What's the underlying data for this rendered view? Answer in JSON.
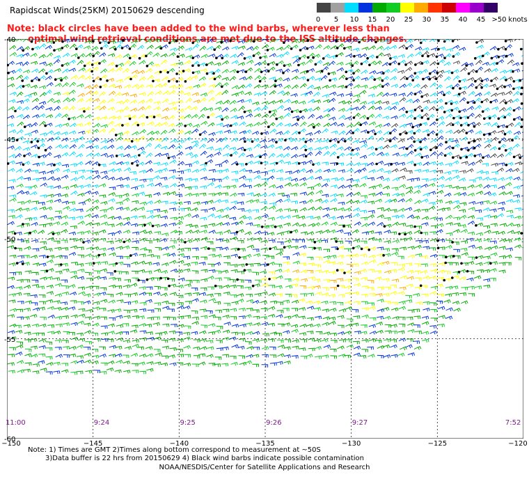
{
  "title": "Rapidscat Winds(25KM) 20150629 descending",
  "note": {
    "line1": "Note: black circles have been added to the wind barbs, wherever less than",
    "line2": "optimal wind retrieval conditions are met due to the ISS altitude changes."
  },
  "legend": {
    "unit": "knots",
    "labels": [
      "0",
      "5",
      "10",
      "15",
      "20",
      "25",
      "30",
      "35",
      "40",
      "45",
      ">50"
    ],
    "colors": [
      "#444444",
      "#a0a0a0",
      "#00ddff",
      "#0033dd",
      "#00aa00",
      "#11cc22",
      "#ffff00",
      "#ffaa00",
      "#ff3300",
      "#cc0000",
      "#ff00ff",
      "#9900cc",
      "#330066"
    ]
  },
  "map": {
    "lat_labels": [
      {
        "label": "-40",
        "lat": -40
      },
      {
        "label": "-45",
        "lat": -45
      },
      {
        "label": "-50",
        "lat": -50
      },
      {
        "label": "-55",
        "lat": -55
      },
      {
        "label": "-60",
        "lat": -60
      }
    ],
    "lon_labels": [
      {
        "label": "−150",
        "lon": -150
      },
      {
        "label": "−145",
        "lon": -145
      },
      {
        "label": "−140",
        "lon": -140
      },
      {
        "label": "−135",
        "lon": -135
      },
      {
        "label": "−130",
        "lon": -130
      },
      {
        "label": "−125",
        "lon": -125
      },
      {
        "label": "−120",
        "lon": -120
      }
    ],
    "time_labels": [
      {
        "label": "11:00",
        "lon": -149.5
      },
      {
        "label": "9:24",
        "lon": -144.5
      },
      {
        "label": "9:25",
        "lon": -139.5
      },
      {
        "label": "9:26",
        "lon": -134.5
      },
      {
        "label": "9:27",
        "lon": -129.5
      },
      {
        "label": "7:52",
        "lon": -120.6
      }
    ],
    "lon_range": [
      -150,
      -120
    ],
    "lat_range": [
      -40,
      -60
    ],
    "swath_southern_edge_lat": -57
  },
  "footnote": {
    "line1": "Note: 1) Times are GMT 2)Times along bottom correspond to measurement at ~50S",
    "line2": "3)Data buffer is 22 hrs from 20150629 4) Black wind barbs indicate possible contamination"
  },
  "credit": "NOAA/NESDIS/Center for Satellite Applications and Research"
}
